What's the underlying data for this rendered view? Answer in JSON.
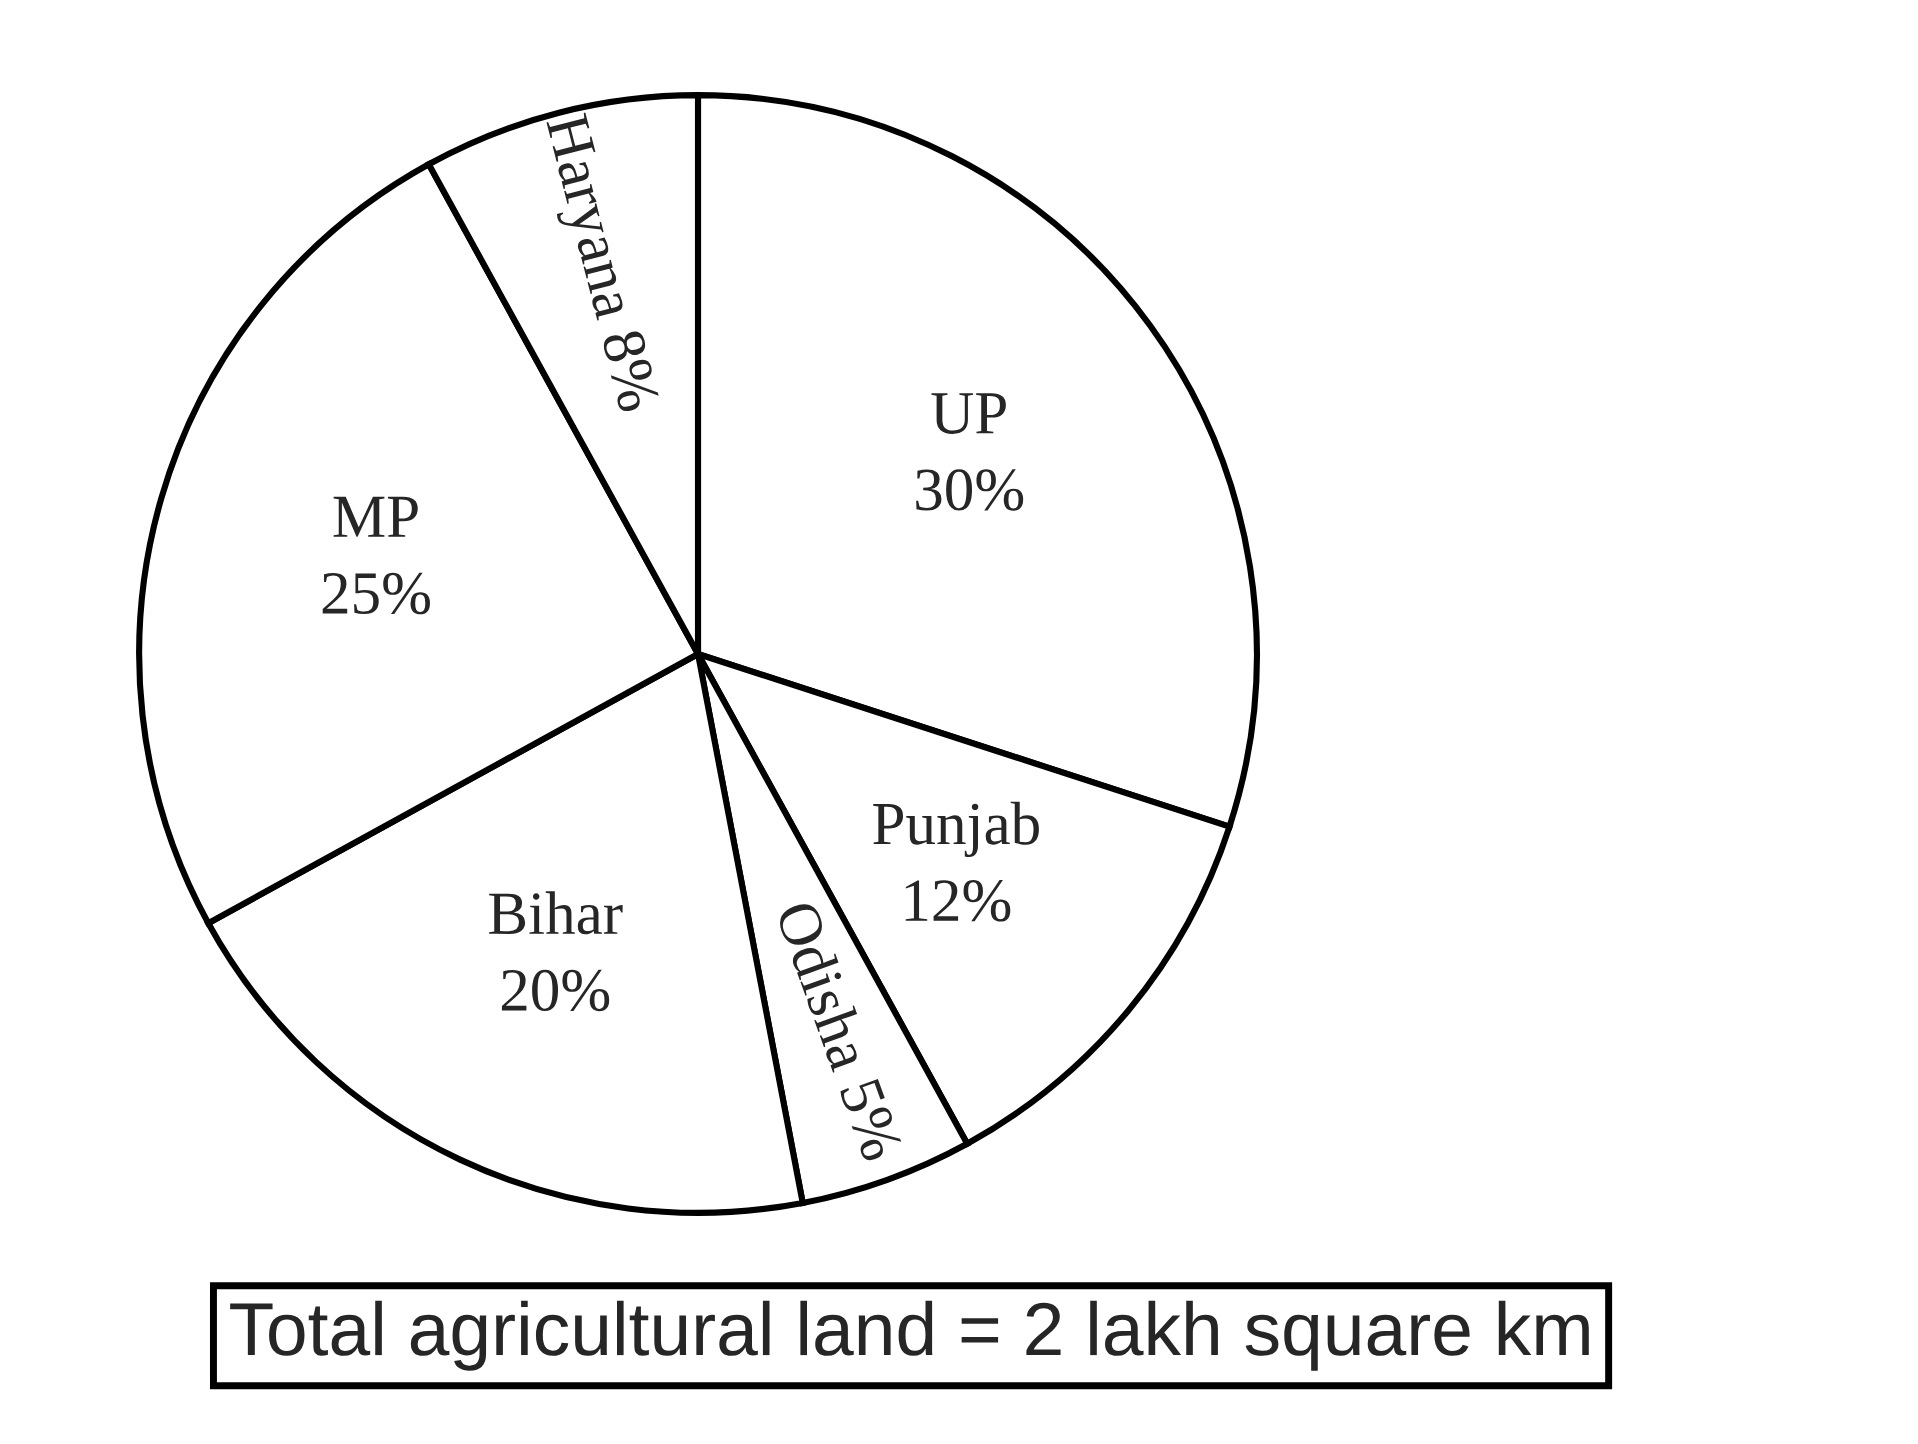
{
  "chart_data": {
    "type": "pie",
    "categories": [
      "UP",
      "Punjab",
      "Odisha",
      "Bihar",
      "MP",
      "Haryana"
    ],
    "values": [
      30,
      12,
      5,
      20,
      25,
      8
    ],
    "value_labels": [
      "30%",
      "12%",
      "5%",
      "20%",
      "25%",
      "8%"
    ],
    "colors": [
      "#ffffff",
      "#ffffff",
      "#ffffff",
      "#ffffff",
      "#ffffff",
      "#ffffff"
    ],
    "annotations": [
      "Total agricultural land = 2 lakh square km"
    ]
  }
}
